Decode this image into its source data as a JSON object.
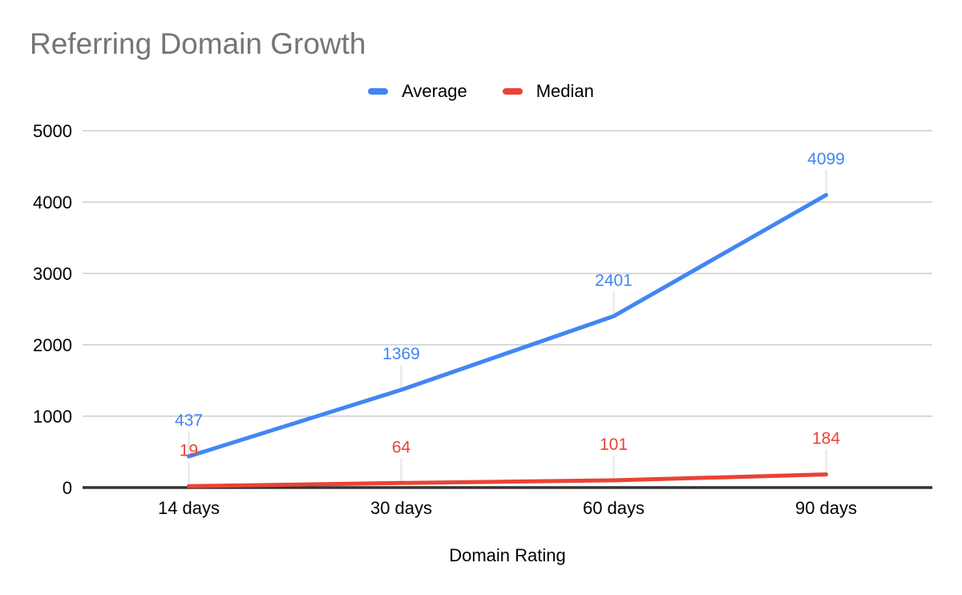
{
  "title": "Referring Domain Growth",
  "x_axis_title": "Domain Rating",
  "chart_data": {
    "type": "line",
    "title": "Referring Domain Growth",
    "xlabel": "Domain Rating",
    "ylabel": "",
    "categories": [
      "14 days",
      "30 days",
      "60 days",
      "90 days"
    ],
    "series": [
      {
        "name": "Average",
        "color": "#4285f4",
        "values": [
          437,
          1369,
          2401,
          4099
        ]
      },
      {
        "name": "Median",
        "color": "#ea4335",
        "values": [
          19,
          64,
          101,
          184
        ]
      }
    ],
    "ylim": [
      0,
      5000
    ],
    "ytick_step": 1000,
    "yticks": [
      0,
      1000,
      2000,
      3000,
      4000,
      5000
    ],
    "grid": "horizontal-only",
    "legend_position": "top-center",
    "data_labels": true
  },
  "colors": {
    "title_text": "#757575",
    "axis_text": "#000000",
    "gridline": "#d9d9d9",
    "zero_axis": "#333333",
    "leader_line": "#e6e6e6",
    "background": "#ffffff",
    "series_average": "#4285f4",
    "series_median": "#ea4335"
  }
}
